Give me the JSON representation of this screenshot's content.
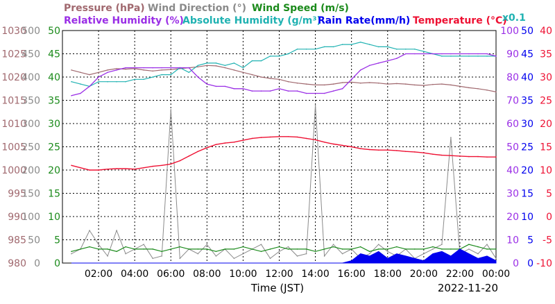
{
  "chart_data": {
    "type": "line",
    "date": "2022-11-20",
    "xlabel": "Time (JST)",
    "x_ticks": [
      "02:00",
      "04:00",
      "06:00",
      "08:00",
      "10:00",
      "12:00",
      "14:00",
      "16:00",
      "18:00",
      "20:00",
      "22:00",
      "00:00"
    ],
    "x_hours": [
      0.5,
      1,
      1.5,
      2,
      2.5,
      3,
      3.5,
      4,
      4.5,
      5,
      5.5,
      6,
      6.5,
      7,
      7.5,
      8,
      8.5,
      9,
      9.5,
      10,
      10.5,
      11,
      11.5,
      12,
      12.5,
      13,
      13.5,
      14,
      14.5,
      15,
      15.5,
      16,
      16.5,
      17,
      17.5,
      18,
      18.5,
      19,
      19.5,
      20,
      20.5,
      21,
      21.5,
      22,
      22.5,
      23,
      23.5,
      24
    ],
    "legend": [
      {
        "label": "Pressure (hPa)",
        "color": "#a0686e"
      },
      {
        "label": "Wind Direction (°)",
        "color": "#8a8a8a"
      },
      {
        "label": "Wind Speed (m/s)",
        "color": "#1a8a1a"
      },
      {
        "label": "Relative Humidity (%)",
        "color": "#9a2ee6"
      },
      {
        "label": "Absolute Humidity (g/m³)",
        "color": "#20b2b2"
      },
      {
        "label": "Rain Rate(mm/h)",
        "color": "#0000ee"
      },
      {
        "label": "Temperature (°C)",
        "color": "#ee1133"
      },
      {
        "label": "x0.1",
        "color": "#20b2b2"
      }
    ],
    "axes": {
      "pressure": {
        "label_color": "#a0686e",
        "ylim": [
          980,
          1030
        ],
        "ticks": [
          1030,
          1025,
          1020,
          1015,
          1010,
          1005,
          1000,
          995,
          990,
          985,
          980
        ]
      },
      "wind_direction": {
        "label_color": "#8a8a8a",
        "ylim": [
          0,
          500
        ],
        "ticks": [
          500,
          450,
          400,
          350,
          300,
          250,
          200,
          150,
          100,
          50,
          0
        ]
      },
      "wind_speed": {
        "label_color": "#1a8a1a",
        "ylim": [
          0,
          50
        ],
        "ticks": [
          50,
          45,
          40,
          35,
          30,
          25,
          20,
          15,
          10,
          5,
          0
        ]
      },
      "humidity": {
        "label_color": "#9a2ee6",
        "ylim": [
          0,
          100
        ],
        "ticks": [
          100,
          90,
          80,
          70,
          60,
          50,
          40,
          30,
          20,
          10,
          0
        ]
      },
      "rain": {
        "label_color": "#0000ee",
        "ylim": [
          0,
          50
        ],
        "ticks": [
          50,
          45,
          40,
          35,
          30,
          25,
          20,
          15,
          10,
          5,
          0
        ]
      },
      "temperature": {
        "label_color": "#ee1133",
        "ylim": [
          -10,
          40
        ],
        "ticks": [
          40,
          35,
          30,
          25,
          20,
          15,
          10,
          5,
          0,
          -5,
          -10
        ]
      }
    },
    "series": [
      {
        "name": "Pressure (hPa)",
        "color": "#a0686e",
        "values": [
          1021.5,
          1021,
          1020.5,
          1021,
          1021.5,
          1021.8,
          1021.7,
          1021.8,
          1021.5,
          1021.3,
          1021.5,
          1021.6,
          1021.8,
          1022,
          1022.2,
          1022.5,
          1022.4,
          1022,
          1021.5,
          1021,
          1020.5,
          1020,
          1019.7,
          1019.5,
          1019,
          1018.7,
          1018.5,
          1018.3,
          1018.3,
          1018.5,
          1018.8,
          1018.9,
          1018.7,
          1018.8,
          1018.7,
          1018.5,
          1018.6,
          1018.5,
          1018.3,
          1018.2,
          1018.4,
          1018.5,
          1018.3,
          1018,
          1017.7,
          1017.5,
          1017.2,
          1016.8
        ]
      },
      {
        "name": "Relative Humidity (%)",
        "color": "#9a2ee6",
        "values": [
          72,
          73,
          76,
          80,
          82,
          83,
          84,
          84,
          84,
          84,
          84,
          84,
          84,
          84,
          80,
          77,
          76,
          76,
          75,
          75,
          74,
          74,
          74,
          75,
          74,
          74,
          73,
          73,
          73,
          74,
          75,
          79,
          83,
          85,
          86,
          87,
          88,
          90,
          90,
          90,
          90,
          90,
          90,
          90,
          90,
          90,
          90,
          89
        ]
      },
      {
        "name": "Absolute Humidity (g/m³)",
        "color": "#20b2b2",
        "values": [
          7.8,
          7.7,
          7.6,
          7.8,
          7.8,
          7.8,
          7.8,
          7.9,
          7.9,
          8,
          8.1,
          8.1,
          8.4,
          8.2,
          8.5,
          8.6,
          8.6,
          8.5,
          8.6,
          8.4,
          8.7,
          8.7,
          8.9,
          8.9,
          9,
          9.2,
          9.2,
          9.2,
          9.3,
          9.3,
          9.4,
          9.4,
          9.5,
          9.4,
          9.3,
          9.3,
          9.2,
          9.2,
          9.2,
          9.1,
          9,
          8.9,
          8.9,
          8.9,
          8.9,
          8.9,
          8.9,
          8.9
        ]
      },
      {
        "name": "Temperature (°C)",
        "color": "#ee1133",
        "values": [
          11,
          10.5,
          10,
          10,
          10.2,
          10.3,
          10.3,
          10.2,
          10.5,
          10.8,
          11,
          11.3,
          12,
          13,
          14,
          14.8,
          15.5,
          15.8,
          16,
          16.4,
          16.8,
          17,
          17.1,
          17.2,
          17.2,
          17.1,
          16.8,
          16.5,
          16,
          15.6,
          15.3,
          15,
          14.6,
          14.4,
          14.3,
          14.3,
          14.2,
          14,
          13.9,
          13.7,
          13.4,
          13.2,
          13.1,
          13,
          12.9,
          12.9,
          12.8,
          12.8
        ]
      },
      {
        "name": "Wind Direction (°)",
        "color": "#8a8a8a",
        "values": [
          20,
          30,
          70,
          40,
          15,
          70,
          20,
          30,
          40,
          10,
          15,
          330,
          10,
          30,
          20,
          40,
          15,
          30,
          10,
          20,
          30,
          40,
          10,
          25,
          35,
          15,
          20,
          340,
          15,
          40,
          20,
          30,
          10,
          20,
          40,
          25,
          15,
          30,
          10,
          20,
          30,
          40,
          270,
          20,
          30,
          20,
          40,
          10
        ]
      },
      {
        "name": "Wind Speed (m/s)",
        "color": "#1a8a1a",
        "values": [
          2.5,
          3,
          3.5,
          3,
          3,
          2.5,
          3.5,
          3,
          3,
          3,
          2.5,
          3,
          3.5,
          3,
          3,
          3,
          2.5,
          3,
          3,
          3.5,
          3,
          2.5,
          3,
          3.5,
          3,
          3,
          3,
          2.5,
          3,
          3.5,
          3,
          3,
          3.5,
          2.5,
          3,
          3,
          3.5,
          3,
          3,
          3,
          3.5,
          3,
          3,
          3,
          4,
          3.5,
          3,
          3
        ]
      },
      {
        "name": "Rain Rate(mm/h)",
        "color": "#0000ee",
        "values": [
          0,
          0,
          0,
          0,
          0,
          0,
          0,
          0,
          0,
          0,
          0,
          0,
          0,
          0,
          0,
          0,
          0,
          0,
          0,
          0,
          0,
          0,
          0,
          0,
          0,
          0,
          0,
          0,
          0,
          0,
          0,
          0.5,
          2,
          1.5,
          2.5,
          1,
          2,
          1.5,
          1,
          0.5,
          2,
          2.5,
          1.5,
          3,
          2,
          1,
          1.5,
          0.5
        ]
      }
    ],
    "date_label": "2022-11-20"
  }
}
